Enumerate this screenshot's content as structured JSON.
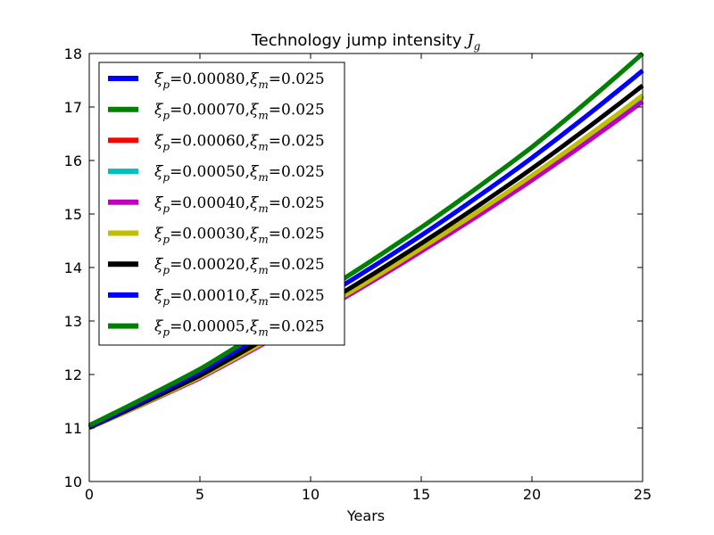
{
  "chart_data": {
    "type": "line",
    "title": "Technology jump intensity J_g",
    "title_main": "Technology jump intensity",
    "title_symbol": "J",
    "title_subscript": "g",
    "xlabel": "Years",
    "ylabel": "",
    "xlim": [
      0,
      25
    ],
    "ylim": [
      10,
      18
    ],
    "xticks": [
      0,
      5,
      10,
      15,
      20,
      25
    ],
    "yticks": [
      10,
      11,
      12,
      13,
      14,
      15,
      16,
      17,
      18
    ],
    "grid": false,
    "legend_position": "upper-left",
    "x": [
      0,
      5,
      10,
      15,
      20,
      25
    ],
    "series": [
      {
        "name": "ξp = 0.00080, ξm = 0.025",
        "legend_xi_p": "0.00080",
        "legend_xi_m": "0.025",
        "color": "#0000ff",
        "values": [
          11.02,
          12.05,
          13.3,
          14.6,
          16.05,
          17.68
        ]
      },
      {
        "name": "ξp = 0.00070, ξm = 0.025",
        "legend_xi_p": "0.00070",
        "legend_xi_m": "0.025",
        "color": "#008000",
        "values": [
          11.05,
          12.1,
          13.4,
          14.75,
          16.25,
          18.0
        ]
      },
      {
        "name": "ξp = 0.00060, ξm = 0.025",
        "legend_xi_p": "0.00060",
        "legend_xi_m": "0.025",
        "color": "#ff0000",
        "values": [
          11.0,
          11.95,
          13.1,
          14.35,
          15.7,
          17.2
        ]
      },
      {
        "name": "ξp = 0.00050, ξm = 0.025",
        "legend_xi_p": "0.00050",
        "legend_xi_m": "0.025",
        "color": "#00bfbf",
        "values": [
          11.0,
          11.95,
          13.1,
          14.35,
          15.7,
          17.2
        ]
      },
      {
        "name": "ξp = 0.00040, ξm = 0.025",
        "legend_xi_p": "0.00040",
        "legend_xi_m": "0.025",
        "color": "#bf00bf",
        "values": [
          11.0,
          11.93,
          13.07,
          14.3,
          15.63,
          17.1
        ]
      },
      {
        "name": "ξp = 0.00030, ξm = 0.025",
        "legend_xi_p": "0.00030",
        "legend_xi_m": "0.025",
        "color": "#bfbf00",
        "values": [
          11.0,
          11.95,
          13.1,
          14.36,
          15.72,
          17.22
        ]
      },
      {
        "name": "ξp = 0.00020, ξm = 0.025",
        "legend_xi_p": "0.00020",
        "legend_xi_m": "0.025",
        "color": "#000000",
        "values": [
          11.01,
          11.98,
          13.17,
          14.45,
          15.85,
          17.4
        ]
      },
      {
        "name": "ξp = 0.00010, ξm = 0.025",
        "legend_xi_p": "0.00010",
        "legend_xi_m": "0.025",
        "color": "#0000ff",
        "values": [
          11.02,
          12.05,
          13.3,
          14.6,
          16.05,
          17.68
        ]
      },
      {
        "name": "ξp = 0.00005, ξm = 0.025",
        "legend_xi_p": "0.00005",
        "legend_xi_m": "0.025",
        "color": "#008000",
        "values": [
          11.05,
          12.1,
          13.4,
          14.75,
          16.25,
          18.0
        ]
      }
    ]
  }
}
